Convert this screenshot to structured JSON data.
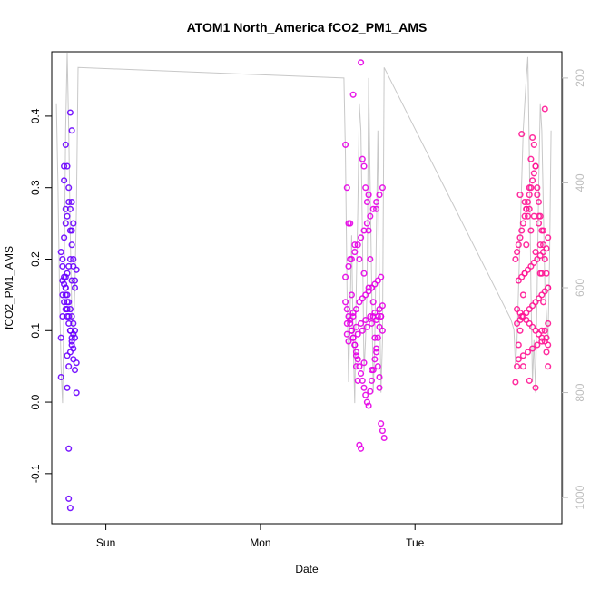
{
  "chart_data": {
    "type": "scatter",
    "title": "ATOM1 North_America fCO2_PM1_AMS",
    "xlabel": "Date",
    "ylabel": "fCO2_PM1_AMS",
    "x_ticks": [
      "Sun",
      "Mon",
      "Tue"
    ],
    "y_ticks": [
      "-0.1",
      "0.0",
      "0.1",
      "0.2",
      "0.3",
      "0.4"
    ],
    "y2_ticks": [
      "200",
      "400",
      "600",
      "800",
      "1000"
    ],
    "xlim": [
      -0.35,
      2.95
    ],
    "ylim": [
      -0.17,
      0.49
    ],
    "y2lim": [
      1050,
      150
    ],
    "grid": false,
    "legend": "none",
    "colors": {
      "series1": "#6a00ff",
      "series2": "#e600e6",
      "series3": "#ff1493",
      "altitude_line": "#c8c8c8",
      "right_axis": "#bdbdbd"
    },
    "series": [
      {
        "x": [
          -0.29,
          -0.29,
          -0.28,
          -0.28,
          -0.27,
          -0.27,
          -0.26,
          -0.26,
          -0.25,
          -0.25,
          -0.24,
          -0.24,
          -0.23,
          -0.23,
          -0.22,
          -0.22,
          -0.21,
          -0.21,
          -0.2,
          -0.2,
          -0.19,
          -0.19,
          -0.29,
          -0.28,
          -0.27,
          -0.26,
          -0.25,
          -0.24,
          -0.23,
          -0.22,
          -0.21,
          -0.2,
          -0.19,
          -0.28,
          -0.27,
          -0.26,
          -0.25,
          -0.24,
          -0.23,
          -0.22,
          -0.21,
          -0.2,
          -0.28,
          -0.27,
          -0.26,
          -0.25,
          -0.24,
          -0.23,
          -0.22,
          -0.21,
          -0.27,
          -0.26,
          -0.25,
          -0.24,
          -0.23,
          -0.22,
          -0.26,
          -0.25,
          -0.24,
          -0.23,
          -0.22,
          -0.21,
          -0.2,
          -0.26,
          -0.25,
          -0.24,
          -0.23,
          -0.22,
          -0.25,
          -0.24,
          -0.23,
          -0.22,
          -0.21
        ],
        "y": [
          0.035,
          0.09,
          0.12,
          0.17,
          0.33,
          0.31,
          0.27,
          0.15,
          0.13,
          0.065,
          -0.065,
          -0.135,
          -0.148,
          0.405,
          0.38,
          0.28,
          0.25,
          0.19,
          0.16,
          0.09,
          0.055,
          0.013,
          0.21,
          0.19,
          0.175,
          0.16,
          0.14,
          0.12,
          0.1,
          0.08,
          0.06,
          0.045,
          0.185,
          0.2,
          0.23,
          0.25,
          0.26,
          0.28,
          0.24,
          0.22,
          0.2,
          0.17,
          0.15,
          0.14,
          0.13,
          0.12,
          0.11,
          0.1,
          0.09,
          0.075,
          0.165,
          0.175,
          0.18,
          0.19,
          0.2,
          0.17,
          0.16,
          0.15,
          0.14,
          0.13,
          0.12,
          0.11,
          0.1,
          0.36,
          0.33,
          0.3,
          0.27,
          0.24,
          0.02,
          0.05,
          0.07,
          0.085,
          0.095
        ]
      },
      {
        "x": [
          1.55,
          1.56,
          1.57,
          1.58,
          1.59,
          1.6,
          1.61,
          1.62,
          1.63,
          1.64,
          1.65,
          1.66,
          1.67,
          1.68,
          1.69,
          1.7,
          1.71,
          1.72,
          1.73,
          1.74,
          1.75,
          1.76,
          1.77,
          1.78,
          1.79,
          1.8,
          1.55,
          1.56,
          1.57,
          1.58,
          1.59,
          1.6,
          1.61,
          1.62,
          1.63,
          1.64,
          1.65,
          1.66,
          1.67,
          1.68,
          1.69,
          1.7,
          1.71,
          1.72,
          1.73,
          1.74,
          1.75,
          1.76,
          1.77,
          1.78,
          1.79,
          1.55,
          1.57,
          1.59,
          1.61,
          1.63,
          1.65,
          1.67,
          1.69,
          1.71,
          1.73,
          1.75,
          1.77,
          1.79,
          1.56,
          1.58,
          1.6,
          1.62,
          1.64,
          1.66,
          1.68,
          1.7,
          1.72,
          1.74,
          1.76,
          1.78,
          1.56,
          1.59,
          1.62,
          1.65,
          1.68,
          1.71,
          1.74,
          1.77,
          1.57,
          1.6,
          1.63,
          1.66,
          1.69,
          1.72,
          1.75,
          1.78,
          1.58,
          1.61,
          1.64,
          1.67,
          1.7,
          1.73,
          1.76,
          1.79,
          1.6,
          1.65,
          1.7,
          1.75,
          1.62,
          1.67,
          1.72,
          1.77
        ],
        "y": [
          0.36,
          0.3,
          0.25,
          0.2,
          0.15,
          0.12,
          0.08,
          0.05,
          0.03,
          -0.06,
          -0.065,
          0.34,
          0.33,
          0.3,
          0.28,
          0.24,
          0.2,
          0.16,
          0.12,
          0.09,
          0.07,
          0.05,
          0.02,
          -0.03,
          -0.04,
          -0.05,
          0.14,
          0.13,
          0.12,
          0.11,
          0.1,
          0.09,
          0.08,
          0.07,
          0.06,
          0.05,
          0.04,
          0.03,
          0.02,
          0.01,
          0.0,
          -0.005,
          0.015,
          0.03,
          0.045,
          0.06,
          0.075,
          0.09,
          0.105,
          0.12,
          0.135,
          0.175,
          0.19,
          0.2,
          0.21,
          0.22,
          0.23,
          0.24,
          0.25,
          0.26,
          0.27,
          0.28,
          0.29,
          0.3,
          0.11,
          0.115,
          0.125,
          0.13,
          0.14,
          0.145,
          0.15,
          0.155,
          0.16,
          0.165,
          0.17,
          0.175,
          0.095,
          0.1,
          0.105,
          0.11,
          0.115,
          0.12,
          0.125,
          0.13,
          0.085,
          0.09,
          0.095,
          0.1,
          0.105,
          0.11,
          0.115,
          0.12,
          0.25,
          0.22,
          0.2,
          0.18,
          0.16,
          0.14,
          0.12,
          0.1,
          0.43,
          0.475,
          0.29,
          0.27,
          0.065,
          0.055,
          0.045,
          0.035
        ]
      },
      {
        "x": [
          2.65,
          2.66,
          2.67,
          2.68,
          2.69,
          2.7,
          2.71,
          2.72,
          2.73,
          2.74,
          2.75,
          2.76,
          2.77,
          2.78,
          2.79,
          2.8,
          2.81,
          2.82,
          2.83,
          2.84,
          2.85,
          2.86,
          2.65,
          2.66,
          2.67,
          2.68,
          2.69,
          2.7,
          2.71,
          2.72,
          2.73,
          2.74,
          2.75,
          2.76,
          2.77,
          2.78,
          2.79,
          2.8,
          2.81,
          2.82,
          2.83,
          2.84,
          2.85,
          2.86,
          2.66,
          2.68,
          2.7,
          2.72,
          2.74,
          2.76,
          2.78,
          2.8,
          2.82,
          2.84,
          2.86,
          2.67,
          2.69,
          2.71,
          2.73,
          2.75,
          2.77,
          2.79,
          2.81,
          2.83,
          2.85,
          2.66,
          2.68,
          2.7,
          2.72,
          2.74,
          2.76,
          2.78,
          2.8,
          2.82,
          2.84,
          2.86,
          2.67,
          2.7,
          2.73,
          2.76,
          2.79,
          2.82,
          2.85,
          2.68,
          2.71,
          2.74,
          2.77,
          2.8,
          2.83,
          2.86,
          2.69,
          2.72,
          2.75,
          2.78,
          2.81,
          2.84,
          2.7,
          2.74,
          2.78,
          2.82,
          2.86
        ],
        "y": [
          0.028,
          0.05,
          0.08,
          0.1,
          0.12,
          0.15,
          0.18,
          0.22,
          0.26,
          0.3,
          0.34,
          0.37,
          0.36,
          0.33,
          0.29,
          0.26,
          0.22,
          0.18,
          0.14,
          0.1,
          0.07,
          0.05,
          0.2,
          0.21,
          0.22,
          0.23,
          0.24,
          0.25,
          0.26,
          0.27,
          0.28,
          0.29,
          0.3,
          0.31,
          0.32,
          0.33,
          0.3,
          0.28,
          0.26,
          0.24,
          0.22,
          0.2,
          0.18,
          0.16,
          0.13,
          0.125,
          0.12,
          0.115,
          0.11,
          0.105,
          0.1,
          0.095,
          0.09,
          0.085,
          0.08,
          0.17,
          0.175,
          0.18,
          0.185,
          0.19,
          0.195,
          0.2,
          0.205,
          0.21,
          0.215,
          0.11,
          0.115,
          0.12,
          0.125,
          0.13,
          0.135,
          0.14,
          0.145,
          0.15,
          0.155,
          0.16,
          0.06,
          0.065,
          0.07,
          0.075,
          0.08,
          0.085,
          0.09,
          0.29,
          0.28,
          0.27,
          0.26,
          0.25,
          0.24,
          0.23,
          0.375,
          0.27,
          0.24,
          0.21,
          0.18,
          0.41,
          0.05,
          0.03,
          0.02,
          0.1,
          0.11
        ]
      }
    ],
    "altitude_line": {
      "x": [
        -0.32,
        -0.31,
        -0.3,
        -0.29,
        -0.28,
        -0.27,
        -0.26,
        -0.25,
        -0.24,
        -0.23,
        -0.22,
        -0.21,
        -0.2,
        -0.19,
        -0.18,
        1.54,
        1.55,
        1.56,
        1.57,
        1.58,
        1.59,
        1.6,
        1.61,
        1.62,
        1.63,
        1.64,
        1.65,
        1.66,
        1.67,
        1.68,
        1.69,
        1.7,
        1.71,
        1.72,
        1.73,
        1.74,
        1.75,
        1.76,
        1.77,
        1.78,
        1.79,
        1.8,
        2.62,
        2.64,
        2.65,
        2.66,
        2.67,
        2.68,
        2.69,
        2.7,
        2.71,
        2.72,
        2.73,
        2.74,
        2.75,
        2.76,
        2.77,
        2.78,
        2.79,
        2.8,
        2.81,
        2.82,
        2.83,
        2.84,
        2.85,
        2.86,
        2.87,
        2.88
      ],
      "y": [
        250,
        400,
        600,
        750,
        820,
        600,
        300,
        130,
        300,
        500,
        650,
        700,
        600,
        450,
        180,
        200,
        350,
        600,
        780,
        650,
        500,
        700,
        820,
        600,
        450,
        250,
        300,
        500,
        760,
        700,
        600,
        200,
        400,
        600,
        800,
        700,
        500,
        300,
        600,
        800,
        700,
        180,
        660,
        680,
        750,
        700,
        600,
        500,
        400,
        300,
        250,
        200,
        160,
        350,
        600,
        780,
        700,
        800,
        600,
        400,
        250,
        300,
        450,
        600,
        650,
        700,
        550,
        300
      ]
    }
  }
}
